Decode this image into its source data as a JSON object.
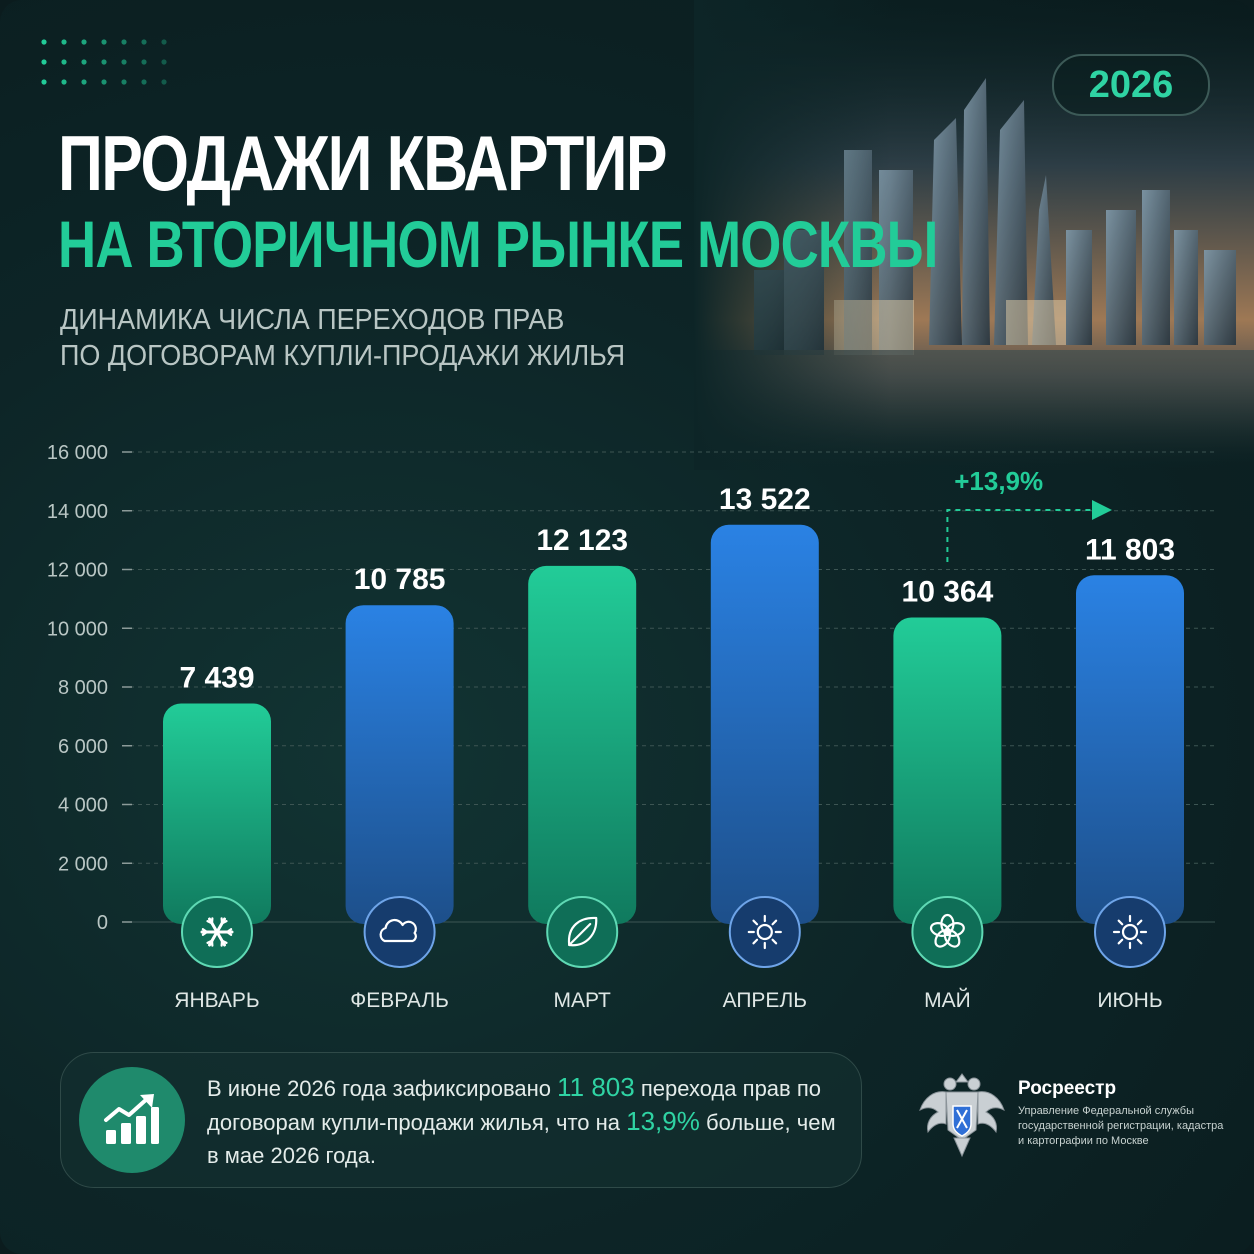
{
  "year": "2026",
  "title_line1": "ПРОДАЖИ КВАРТИР",
  "title_line2": "НА ВТОРИЧНОМ РЫНКЕ МОСКВЫ",
  "subtitle_line1": "ДИНАМИКА ЧИСЛА ПЕРЕХОДОВ ПРАВ",
  "subtitle_line2": "ПО ДОГОВОРАМ КУПЛИ-ПРОДАЖИ ЖИЛЬЯ",
  "colors": {
    "accent_green": "#22cc98",
    "bar_green_top": "#22cc98",
    "bar_green_bottom": "#107a5e",
    "bar_blue_top": "#2a82e4",
    "bar_blue_bottom": "#1d4f8a"
  },
  "chart_data": {
    "type": "bar",
    "categories": [
      "ЯНВАРЬ",
      "ФЕВРАЛЬ",
      "МАРТ",
      "АПРЕЛЬ",
      "МАЙ",
      "ИЮНЬ"
    ],
    "values": [
      7439,
      10785,
      12123,
      13522,
      10364,
      11803
    ],
    "value_labels": [
      "7 439",
      "10 785",
      "12 123",
      "13 522",
      "10 364",
      "11 803"
    ],
    "bar_colors": [
      "green",
      "blue",
      "green",
      "blue",
      "green",
      "blue"
    ],
    "month_icons": [
      "snowflake-icon",
      "cloud-icon",
      "leaf-icon",
      "sun-icon",
      "flower-icon",
      "sun-icon"
    ],
    "ylim": [
      0,
      16000
    ],
    "yticks": [
      0,
      2000,
      4000,
      6000,
      8000,
      10000,
      12000,
      14000,
      16000
    ],
    "ytick_labels": [
      "0",
      "2 000",
      "4 000",
      "6 000",
      "8 000",
      "10 000",
      "12 000",
      "14 000",
      "16 000"
    ],
    "grid": true,
    "annotation": {
      "text": "+13,9%",
      "from_category": "МАЙ",
      "to_category": "ИЮНЬ"
    }
  },
  "summary": {
    "icon": "growth-chart-icon",
    "text_before_count": "В июне 2026 года зафиксировано ",
    "count": "11 803",
    "text_middle": " перехода прав по договорам купли-продажи жилья, что на ",
    "percent": "13,9%",
    "text_after": " больше, чем в мае 2026 года."
  },
  "organization": {
    "logo": "coat-of-arms-icon",
    "name": "Росреестр",
    "description": "Управление Федеральной службы государственной регистрации, кадастра и картографии по Москве"
  }
}
